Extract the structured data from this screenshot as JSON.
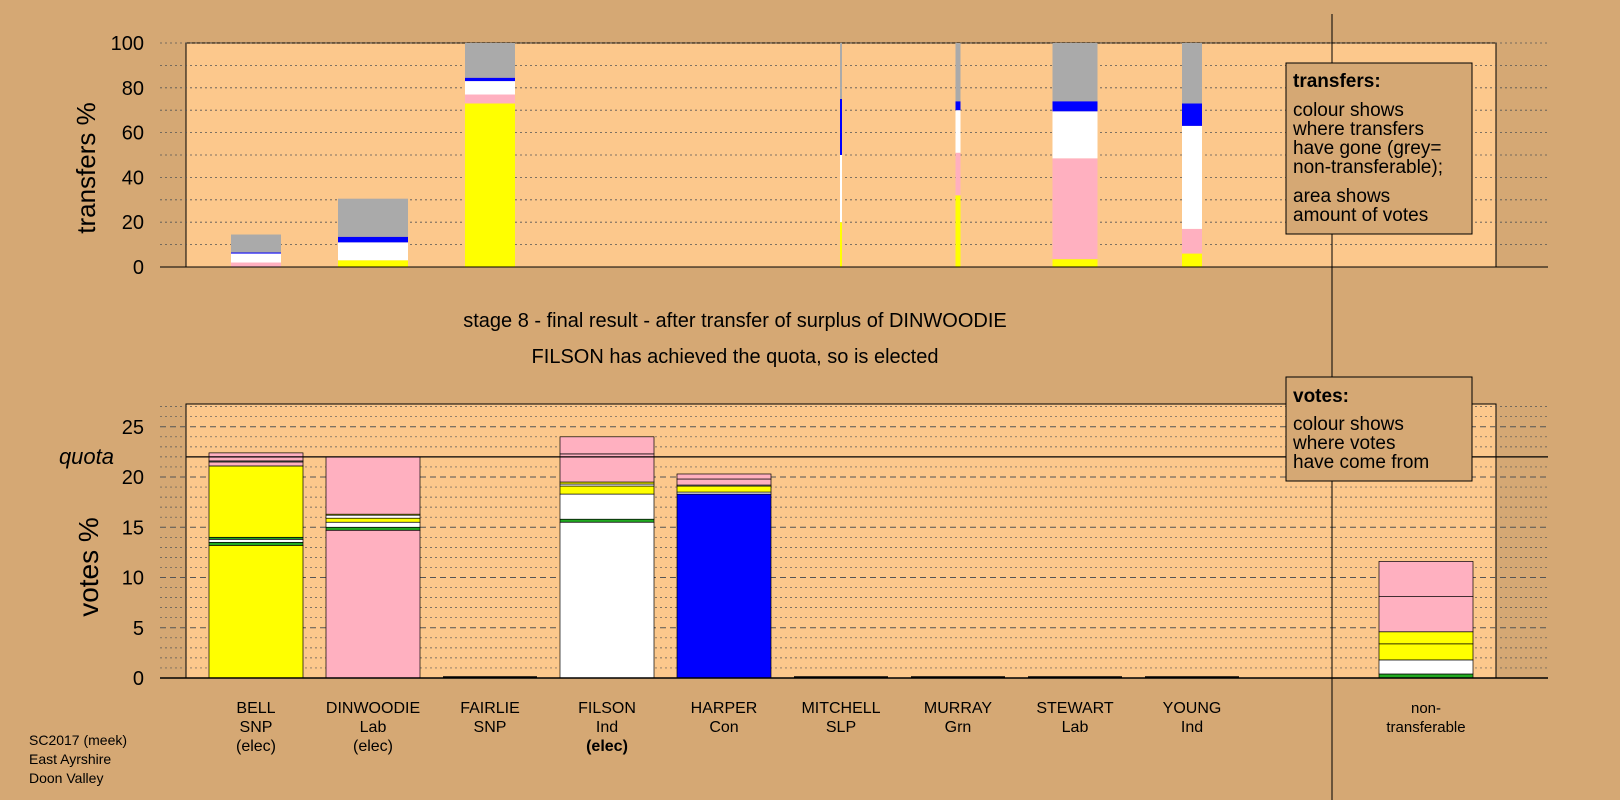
{
  "colors": {
    "page_bg": "#D5A874",
    "plot_bg": "#FCC88C",
    "legend_bg": "#D5A874",
    "grey": "#AAAAAA",
    "white": "#FFFFFF",
    "pink": "#FFB0C0",
    "yellow": "#FFFF00",
    "blue": "#0000FF",
    "green": "#22AA22"
  },
  "chart_data": [
    {
      "type": "bar",
      "stacked": true,
      "ylabel": "transfers %",
      "ylim": [
        0,
        100
      ],
      "yticks": [
        "0",
        "20",
        "40",
        "60",
        "80",
        "100"
      ],
      "grid": true,
      "legend": {
        "placement": "top-right",
        "title": "transfers:",
        "lines": [
          "colour shows",
          "where transfers",
          "have gone (grey=",
          "non-transferable);",
          "area shows",
          "amount of votes"
        ]
      },
      "note": "bar width shows amount of votes transferred",
      "series_order": [
        "yellow",
        "pink",
        "white",
        "blue",
        "grey"
      ],
      "bars": [
        {
          "candidate": "BELL",
          "width": 0.5,
          "segments": {
            "yellow": 0,
            "pink": 2,
            "white": 4,
            "blue": 0.5,
            "grey": 8
          }
        },
        {
          "candidate": "DINWOODIE",
          "width": 0.7,
          "segments": {
            "yellow": 3,
            "pink": 0,
            "white": 8,
            "blue": 2.5,
            "grey": 17
          }
        },
        {
          "candidate": "FAIRLIE",
          "width": 0.5,
          "segments": {
            "yellow": 73,
            "pink": 4,
            "white": 6,
            "blue": 1.5,
            "grey": 15.5
          }
        },
        {
          "candidate": "MITCHELL",
          "width": 0.02,
          "segments": {
            "yellow": 20,
            "pink": 0,
            "white": 30,
            "blue": 25,
            "grey": 25
          }
        },
        {
          "candidate": "MURRAY",
          "width": 0.05,
          "segments": {
            "yellow": 32,
            "pink": 19,
            "white": 19,
            "blue": 4,
            "grey": 26
          }
        },
        {
          "candidate": "STEWART",
          "width": 0.45,
          "segments": {
            "yellow": 3.5,
            "pink": 45,
            "white": 21,
            "blue": 4.5,
            "grey": 26
          }
        },
        {
          "candidate": "YOUNG",
          "width": 0.2,
          "segments": {
            "yellow": 6,
            "pink": 11,
            "white": 46,
            "blue": 10,
            "grey": 27
          }
        }
      ]
    },
    {
      "type": "bar",
      "stacked": true,
      "ylabel": "votes %",
      "ylim": [
        0,
        27
      ],
      "yticks": [
        "0",
        "5",
        "10",
        "15",
        "20",
        "25"
      ],
      "quota": 22,
      "quota_label": "quota",
      "grid": true,
      "legend": {
        "placement": "top-right",
        "title": "votes:",
        "lines": [
          "colour shows",
          "where votes",
          "have come from"
        ]
      },
      "title_lines": [
        "stage 8 - final result - after transfer of surplus of DINWOODIE",
        "FILSON has achieved the quota, so is elected"
      ],
      "categories": [
        {
          "name": "BELL",
          "party": "SNP",
          "status": "(elec)",
          "bold": false
        },
        {
          "name": "DINWOODIE",
          "party": "Lab",
          "status": "(elec)",
          "bold": false
        },
        {
          "name": "FAIRLIE",
          "party": "SNP",
          "status": "",
          "bold": false
        },
        {
          "name": "FILSON",
          "party": "Ind",
          "status": "(elec)",
          "bold": true
        },
        {
          "name": "HARPER",
          "party": "Con",
          "status": "",
          "bold": false
        },
        {
          "name": "MITCHELL",
          "party": "SLP",
          "status": "",
          "bold": false
        },
        {
          "name": "MURRAY",
          "party": "Grn",
          "status": "",
          "bold": false
        },
        {
          "name": "STEWART",
          "party": "Lab",
          "status": "",
          "bold": false
        },
        {
          "name": "YOUNG",
          "party": "Ind",
          "status": "",
          "bold": false
        },
        {
          "name": "non-",
          "party": "transferable",
          "status": "",
          "bold": false
        }
      ],
      "stacks": [
        [
          {
            "c": "yellow",
            "v": 13.2
          },
          {
            "c": "green",
            "v": 0.3
          },
          {
            "c": "white",
            "v": 0.3
          },
          {
            "c": "green",
            "v": 0.2
          },
          {
            "c": "yellow",
            "v": 7.1
          },
          {
            "c": "pink",
            "v": 0.4
          },
          {
            "c": "white",
            "v": 0.1
          },
          {
            "c": "pink",
            "v": 0.8
          }
        ],
        [
          {
            "c": "pink",
            "v": 14.7
          },
          {
            "c": "green",
            "v": 0.3
          },
          {
            "c": "white",
            "v": 0.5
          },
          {
            "c": "yellow",
            "v": 0.4
          },
          {
            "c": "white",
            "v": 0.3
          },
          {
            "c": "yellow",
            "v": 0.1
          },
          {
            "c": "pink",
            "v": 5.7
          }
        ],
        [],
        [
          {
            "c": "white",
            "v": 15.5
          },
          {
            "c": "green",
            "v": 0.3
          },
          {
            "c": "white",
            "v": 2.5
          },
          {
            "c": "yellow",
            "v": 0.8
          },
          {
            "c": "white",
            "v": 0.2
          },
          {
            "c": "yellow",
            "v": 0.2
          },
          {
            "c": "pink",
            "v": 2.8
          },
          {
            "c": "pink",
            "v": 1.7
          }
        ],
        [
          {
            "c": "blue",
            "v": 18.3
          },
          {
            "c": "white",
            "v": 0.2
          },
          {
            "c": "yellow",
            "v": 0.6
          },
          {
            "c": "white",
            "v": 0.1
          },
          {
            "c": "pink",
            "v": 0.6
          },
          {
            "c": "pink",
            "v": 0.5
          }
        ],
        [],
        [],
        [],
        [],
        [
          {
            "c": "green",
            "v": 0.4
          },
          {
            "c": "white",
            "v": 1.4
          },
          {
            "c": "yellow",
            "v": 1.6
          },
          {
            "c": "yellow",
            "v": 1.2
          },
          {
            "c": "pink",
            "v": 3.5
          },
          {
            "c": "pink",
            "v": 3.5
          }
        ]
      ]
    }
  ],
  "footer": {
    "line1": "SC2017 (meek)",
    "line2": "East Ayrshire",
    "line3": "Doon Valley"
  }
}
